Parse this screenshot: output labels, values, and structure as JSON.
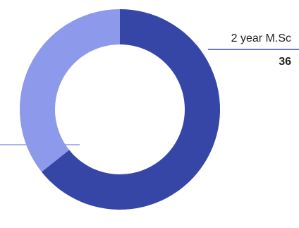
{
  "chart_data": {
    "type": "donut",
    "categories": [
      "2 year M.Sc",
      null
    ],
    "values": [
      36,
      20
    ],
    "colors": [
      "#3646a6",
      "#8d99ea"
    ]
  }
}
